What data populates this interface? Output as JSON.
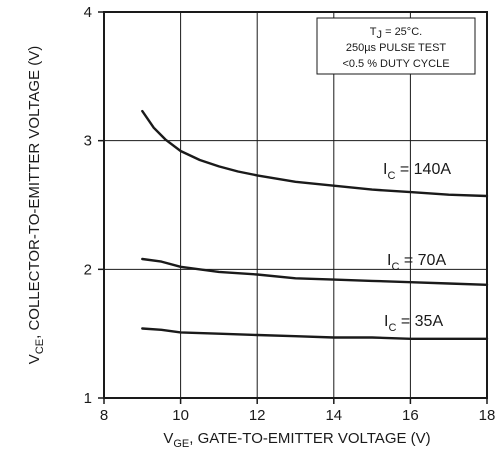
{
  "chart_data": {
    "type": "line",
    "xlabel": {
      "main": "V",
      "sub": "GE",
      "rest": ", GATE-TO-EMITTER VOLTAGE (V)"
    },
    "ylabel": {
      "main": "V",
      "sub": "CE",
      "rest": ", COLLECTOR-TO-EMITTER VOLTAGE (V)"
    },
    "xlim": [
      8,
      18
    ],
    "ylim": [
      1,
      4
    ],
    "xticks": [
      8,
      10,
      12,
      14,
      16,
      18
    ],
    "yticks": [
      1,
      2,
      3,
      4
    ],
    "grid": true,
    "annotation": {
      "line1_main": "T",
      "line1_sub": "J",
      "line1_rest": " = 25°C.",
      "line2": "250µs PULSE TEST",
      "line3": "<0.5 % DUTY CYCLE"
    },
    "series": [
      {
        "label_main": "I",
        "label_sub": "C",
        "label_rest": " = 140A",
        "color": "#1a1a1a",
        "x": [
          9,
          9.3,
          9.6,
          10,
          10.5,
          11,
          11.5,
          12,
          13,
          14,
          15,
          16,
          17,
          18
        ],
        "y": [
          3.23,
          3.1,
          3.01,
          2.92,
          2.85,
          2.8,
          2.76,
          2.73,
          2.68,
          2.65,
          2.62,
          2.6,
          2.58,
          2.57
        ]
      },
      {
        "label_main": "I",
        "label_sub": "C",
        "label_rest": " = 70A",
        "color": "#1a1a1a",
        "x": [
          9,
          9.5,
          10,
          11,
          12,
          13,
          14,
          15,
          16,
          17,
          18
        ],
        "y": [
          2.08,
          2.06,
          2.02,
          1.98,
          1.96,
          1.93,
          1.92,
          1.91,
          1.9,
          1.89,
          1.88
        ]
      },
      {
        "label_main": "I",
        "label_sub": "C",
        "label_rest": " = 35A",
        "color": "#1a1a1a",
        "x": [
          9,
          9.5,
          10,
          11,
          12,
          13,
          14,
          15,
          16,
          17,
          18
        ],
        "y": [
          1.54,
          1.53,
          1.51,
          1.5,
          1.49,
          1.48,
          1.47,
          1.47,
          1.46,
          1.46,
          1.46
        ]
      }
    ]
  }
}
